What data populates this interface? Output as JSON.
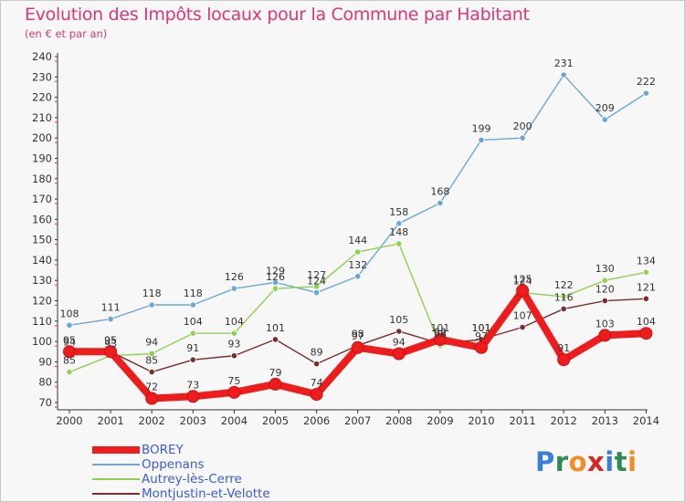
{
  "title": "Evolution des Impôts locaux pour la Commune par Habitant",
  "subtitle": "(en € et par an)",
  "logo": {
    "text": "Proxiti",
    "colors": [
      "#3a7fd5",
      "#2e8b57",
      "#f28c28",
      "#d62728",
      "#3a7fd5",
      "#2e8b57",
      "#f28c28"
    ]
  },
  "colors": {
    "title": "#e0347a",
    "axis": "#333333",
    "grid": "#d9d9d9",
    "axis_marker": "#e63333",
    "legend_text": "#3b5bdb"
  },
  "chart_data": {
    "type": "line",
    "x": [
      "2000",
      "2001",
      "2002",
      "2003",
      "2004",
      "2005",
      "2006",
      "2007",
      "2008",
      "2009",
      "2010",
      "2011",
      "2012",
      "2013",
      "2014"
    ],
    "y_ticks": [
      "70",
      "80",
      "90",
      "100",
      "110",
      "120",
      "130",
      "140",
      "150",
      "160",
      "170",
      "180",
      "190",
      "200",
      "210",
      "220",
      "230",
      "240"
    ],
    "ylim": [
      70,
      240
    ],
    "grid": false,
    "legend_position": "bottom-left",
    "series": [
      {
        "name": "Oppenans",
        "color": "#6aa7d8",
        "values": [
          108,
          111,
          118,
          118,
          126,
          129,
          124,
          132,
          158,
          168,
          199,
          200,
          231,
          209,
          222
        ]
      },
      {
        "name": "Autrey-lès-Cerre",
        "color": "#8fd14f",
        "values": [
          85,
          93,
          94,
          104,
          104,
          126,
          127,
          144,
          148,
          98,
          101,
          124,
          122,
          130,
          134
        ]
      },
      {
        "name": "Montjustin-et-Velotte",
        "color": "#7b2d2d",
        "values": [
          94,
          95,
          85,
          91,
          93,
          101,
          89,
          98,
          105,
          99,
          101,
          107,
          116,
          120,
          121
        ]
      },
      {
        "name": "BOREY",
        "color": "#ee1c1c",
        "values": [
          95,
          95,
          72,
          73,
          75,
          79,
          74,
          97,
          94,
          101,
          97,
          125,
          91,
          103,
          104
        ]
      }
    ]
  }
}
